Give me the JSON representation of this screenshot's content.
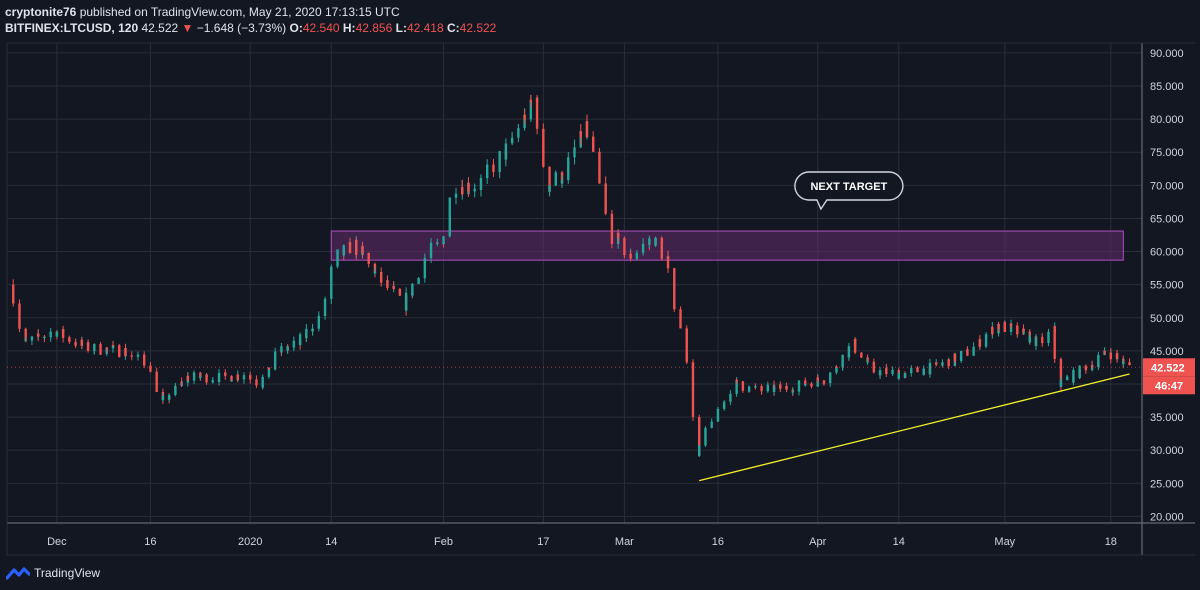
{
  "header": {
    "publisher": "cryptonite76",
    "published_text": "published on TradingView.com, May 21, 2020 17:13:15 UTC",
    "symbol": "BITFINEX:LTCUSD, 120",
    "last": "42.522",
    "arrow": "▼",
    "change": "−1.648 (−3.73%)",
    "o_label": "O:",
    "o_value": "42.540",
    "h_label": "H:",
    "h_value": "42.856",
    "l_label": "L:",
    "l_value": "42.418",
    "c_label": "C:",
    "c_value": "42.522"
  },
  "footer": {
    "brand": "TradingView"
  },
  "colors": {
    "background": "#131722",
    "grid": "#2a2e39",
    "up": "#26a69a",
    "down": "#ef5350",
    "zone_fill": "#5b2a63",
    "zone_border": "#b14fc2",
    "trendline": "#f5f02a",
    "text": "#d1d4dc"
  },
  "chart_data": {
    "type": "candlestick",
    "x_tick_labels": [
      "Dec",
      "16",
      "2020",
      "14",
      "Feb",
      "17",
      "Mar",
      "16",
      "Apr",
      "14",
      "May",
      "18"
    ],
    "y_ticks": [
      20,
      25,
      30,
      35,
      40,
      45,
      50,
      55,
      60,
      65,
      70,
      75,
      80,
      85,
      90
    ],
    "y_tick_labels": [
      "20.000",
      "25.000",
      "30.000",
      "35.000",
      "40.000",
      "45.000",
      "50.000",
      "55.000",
      "60.000",
      "65.000",
      "70.000",
      "75.000",
      "80.000",
      "85.000",
      "90.000"
    ],
    "ylim": [
      19,
      91.5
    ],
    "grid": true,
    "price_path": [
      {
        "date": "2019-11-24",
        "price": 55
      },
      {
        "date": "2019-11-26",
        "price": 46
      },
      {
        "date": "2019-12-01",
        "price": 48
      },
      {
        "date": "2019-12-06",
        "price": 45.5
      },
      {
        "date": "2019-12-12",
        "price": 45
      },
      {
        "date": "2019-12-16",
        "price": 43
      },
      {
        "date": "2019-12-18",
        "price": 37
      },
      {
        "date": "2019-12-22",
        "price": 41
      },
      {
        "date": "2019-12-28",
        "price": 41
      },
      {
        "date": "2020-01-01",
        "price": 41.5
      },
      {
        "date": "2020-01-03",
        "price": 40
      },
      {
        "date": "2020-01-06",
        "price": 45
      },
      {
        "date": "2020-01-09",
        "price": 46
      },
      {
        "date": "2020-01-13",
        "price": 51
      },
      {
        "date": "2020-01-15",
        "price": 59
      },
      {
        "date": "2020-01-18",
        "price": 61
      },
      {
        "date": "2020-01-22",
        "price": 56
      },
      {
        "date": "2020-01-26",
        "price": 52
      },
      {
        "date": "2020-01-30",
        "price": 60
      },
      {
        "date": "2020-02-01",
        "price": 61
      },
      {
        "date": "2020-02-03",
        "price": 70
      },
      {
        "date": "2020-02-07",
        "price": 70
      },
      {
        "date": "2020-02-12",
        "price": 76
      },
      {
        "date": "2020-02-14",
        "price": 80
      },
      {
        "date": "2020-02-16",
        "price": 83
      },
      {
        "date": "2020-02-18",
        "price": 70
      },
      {
        "date": "2020-02-21",
        "price": 72
      },
      {
        "date": "2020-02-24",
        "price": 79
      },
      {
        "date": "2020-02-26",
        "price": 72
      },
      {
        "date": "2020-02-28",
        "price": 63
      },
      {
        "date": "2020-03-02",
        "price": 59
      },
      {
        "date": "2020-03-06",
        "price": 62
      },
      {
        "date": "2020-03-08",
        "price": 59
      },
      {
        "date": "2020-03-10",
        "price": 50
      },
      {
        "date": "2020-03-12",
        "price": 42
      },
      {
        "date": "2020-03-13",
        "price": 29
      },
      {
        "date": "2020-03-15",
        "price": 34
      },
      {
        "date": "2020-03-19",
        "price": 40
      },
      {
        "date": "2020-03-23",
        "price": 39
      },
      {
        "date": "2020-03-28",
        "price": 39.5
      },
      {
        "date": "2020-04-03",
        "price": 41
      },
      {
        "date": "2020-04-07",
        "price": 46
      },
      {
        "date": "2020-04-10",
        "price": 42
      },
      {
        "date": "2020-04-15",
        "price": 41.5
      },
      {
        "date": "2020-04-20",
        "price": 42.5
      },
      {
        "date": "2020-04-26",
        "price": 45
      },
      {
        "date": "2020-04-30",
        "price": 49
      },
      {
        "date": "2020-05-03",
        "price": 48
      },
      {
        "date": "2020-05-07",
        "price": 46
      },
      {
        "date": "2020-05-09",
        "price": 48
      },
      {
        "date": "2020-05-10",
        "price": 40
      },
      {
        "date": "2020-05-12",
        "price": 41
      },
      {
        "date": "2020-05-18",
        "price": 45
      },
      {
        "date": "2020-05-21",
        "price": 42.52
      }
    ],
    "resistance_zone": {
      "start": "2020-01-14",
      "end": "2020-05-20",
      "low": 58.7,
      "high": 63.1
    },
    "trendline": [
      {
        "date": "2020-03-13",
        "price": 25.4
      },
      {
        "date": "2020-05-21",
        "price": 41.5
      }
    ],
    "annotation": {
      "text": "NEXT TARGET",
      "date": "2020-04-06",
      "price": 69.9
    },
    "last_price_label": "42.522",
    "countdown_label": "46:47"
  }
}
